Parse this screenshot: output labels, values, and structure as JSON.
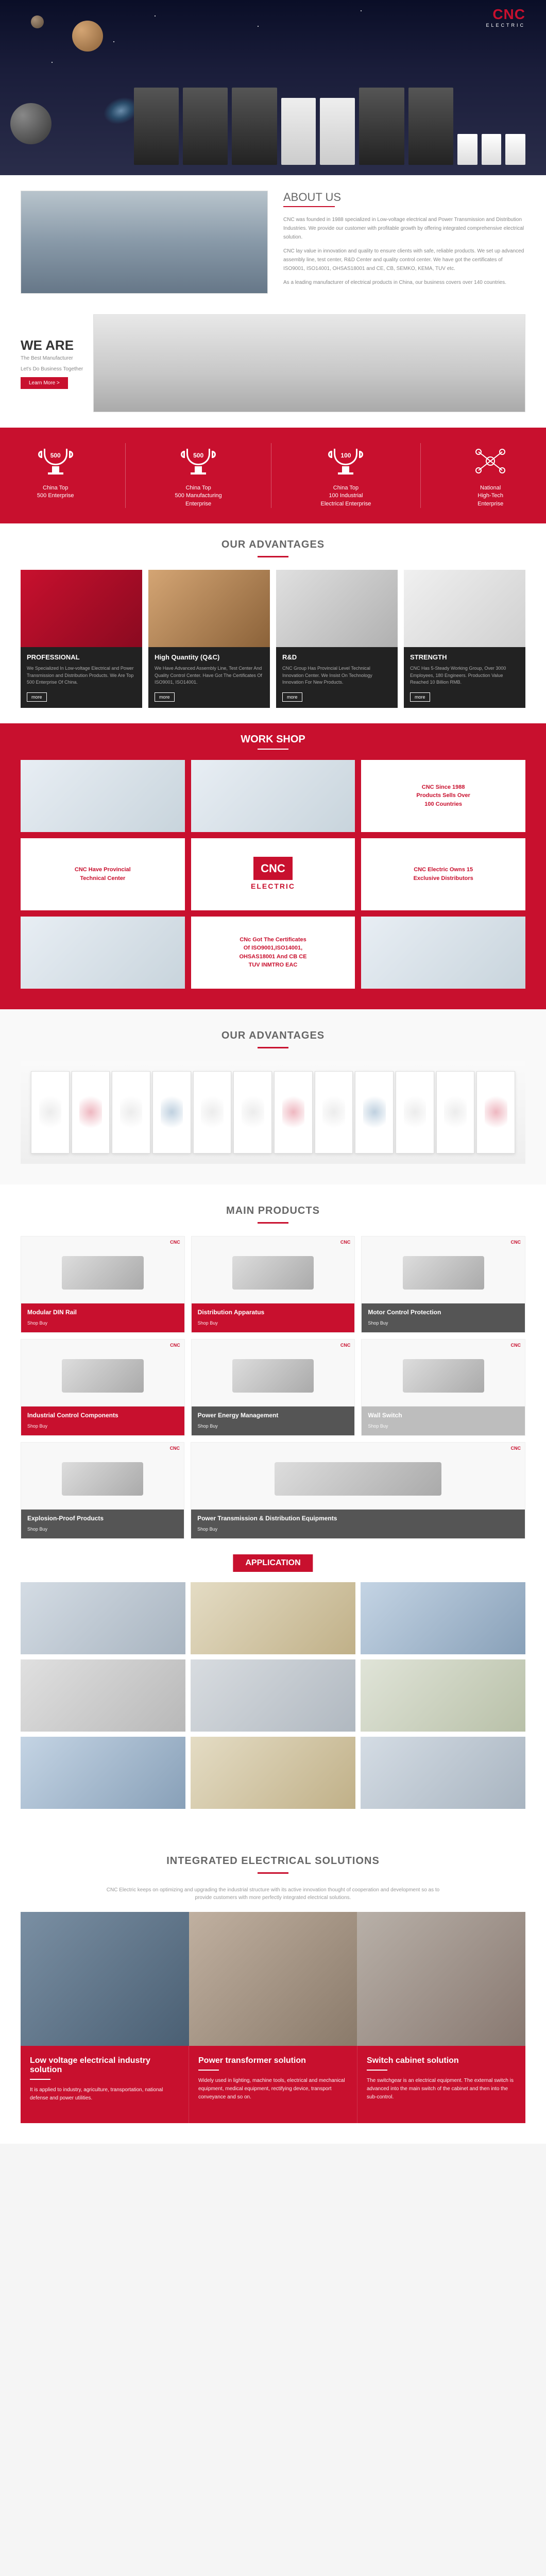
{
  "brand": {
    "name": "CNC",
    "sub": "ELECTRIC"
  },
  "about": {
    "title": "ABOUT US",
    "p1": "CNC was founded in 1988 specialized in Low-voltage electrical and Power Transmission and Distribution Industries. We provide our customer with profitable growth by offering integrated comprehensive electrical solution.",
    "p2": "CNC lay value in innovation and quality to ensure clients with safe, reliable products. We set up advanced assembly line, test center, R&D Center and quality control center. We have got the certificates of ISO9001, ISO14001, OHSAS18001 and CE, CB, SEMKO, KEMA, TUV etc.",
    "p3": "As a leading manufacturer of electrical products in China, our business covers over 140 countries."
  },
  "weare": {
    "title": "WE ARE",
    "l1": "The Best Manufacturer",
    "l2": "Let's Do Business Together",
    "btn": "Learn More >"
  },
  "badges": [
    {
      "num": "500",
      "label": "China Top\n500 Enterprise",
      "icon": "trophy"
    },
    {
      "num": "500",
      "label": "China Top\n500 Manufacturing\nEnterprise",
      "icon": "trophy"
    },
    {
      "num": "100",
      "label": "China Top\n100 Industrial\nElectrical Enterprise",
      "icon": "trophy"
    },
    {
      "num": "",
      "label": "National\nHigh-Tech\nEnterprise",
      "icon": "tech"
    }
  ],
  "advantages": {
    "title": "OUR ADVANTAGES",
    "cards": [
      {
        "title": "PROFESSIONAL",
        "desc": "We Specialized In Low-voltage Electrical and Power Transmission and Distribution Products. We Are Top 500 Enterprise Of China.",
        "more": "more"
      },
      {
        "title": "High Quantity (Q&C)",
        "desc": "We Have Advanced Assembly Line, Test Center And Quality Control Center. Have Got The Certificates Of ISO9001, ISO14001.",
        "more": "more"
      },
      {
        "title": "R&D",
        "desc": "CNC Group Has Provincial Level Technical Innovation Center. We Insist On Technology Innovation For New Products.",
        "more": "more"
      },
      {
        "title": "STRENGTH",
        "desc": "CNC Has 5-Steady Working Group, Over 3000 Employees, 180 Engineers. Production Value Reached 10 Billion RMB.",
        "more": "more"
      }
    ]
  },
  "workshop": {
    "title": "WORK SHOP",
    "cells": [
      {
        "kind": "img"
      },
      {
        "kind": "img"
      },
      {
        "kind": "txt",
        "text": "CNC Since 1988\nProducts Sells Over\n100 Countries"
      },
      {
        "kind": "txt",
        "text": "CNC Have Provincial\nTechnical Center"
      },
      {
        "kind": "logo"
      },
      {
        "kind": "txt",
        "text": "CNC Electric Owns 15\nExclusive Distributors"
      },
      {
        "kind": "img"
      },
      {
        "kind": "txt",
        "text": "CNc Got The Certificates\nOf ISO9001,ISO14001,\nOHSAS18001 And CB CE\nTUV INMTRO EAC"
      },
      {
        "kind": "img"
      }
    ]
  },
  "certs": {
    "title": "OUR ADVANTAGES"
  },
  "mainproducts": {
    "title": "MAIN PRODUCTS",
    "rows": [
      [
        {
          "title": "Modular DIN Rail",
          "sub": "Shop Buy",
          "bar": "red"
        },
        {
          "title": "Distribution Apparatus",
          "sub": "Shop Buy",
          "bar": "red"
        },
        {
          "title": "Motor Control Protection",
          "sub": "Shop Buy",
          "bar": "dark"
        }
      ],
      [
        {
          "title": "Industrial Control Components",
          "sub": "Shop Buy",
          "bar": "red"
        },
        {
          "title": "Power Energy Management",
          "sub": "Shop Buy",
          "bar": "dark"
        },
        {
          "title": "Wall Switch",
          "sub": "Shop Buy",
          "bar": "grey"
        }
      ],
      [
        {
          "title": "Explosion-Proof Products",
          "sub": "Shop Buy",
          "bar": "dark"
        },
        {
          "title": "Power Transmission & Distribution Equipments",
          "sub": "Shop Buy",
          "bar": "dark",
          "wide": true
        }
      ]
    ]
  },
  "application": {
    "title": "APPLICATION"
  },
  "integrated": {
    "title": "INTEGRATED ELECTRICAL SOLUTIONS",
    "sub": "CNC Electric keeps on optimizing and upgrading the industrial structure with its active innovation thought of cooperation and development so as to provide customers with more perfectly integrated electrical solutions.",
    "bars": [
      {
        "title": "Low voltage electrical industry solution",
        "desc": "It is applied to industry, agriculture, transportation, national defense and power utilities."
      },
      {
        "title": "Power transformer solution",
        "desc": "Widely used in lighting, machine tools, electrical and mechanical equipment, medical equipment, rectifying device, transport conveyance and so on."
      },
      {
        "title": "Switch cabinet solution",
        "desc": "The switchgear is an electrical equipment. The external switch is advanced into the main switch of the cabinet and then into the sub-control."
      }
    ]
  }
}
